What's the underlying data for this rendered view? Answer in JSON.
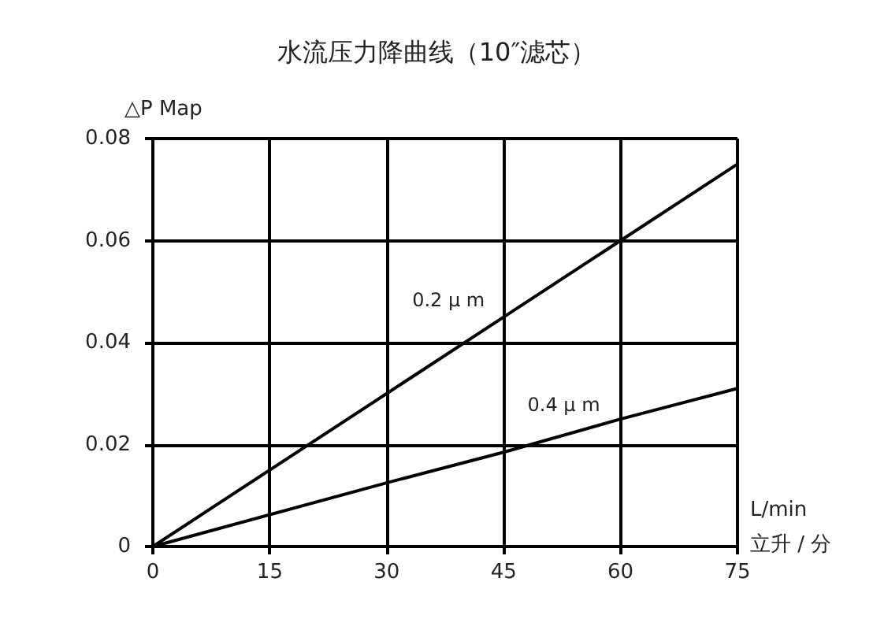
{
  "chart_data": {
    "type": "line",
    "title": "水流压力降曲线（10″滤芯）",
    "ylabel": "△P Map",
    "xlabel": "L/min\n立升 / 分",
    "x": [
      0,
      30,
      45,
      60,
      75
    ],
    "series": [
      {
        "name": "0.2 μ m",
        "color": "#000000",
        "values": [
          0,
          0.03,
          0.045,
          0.06,
          0.075
        ]
      },
      {
        "name": "0.4 μ m",
        "color": "#000000",
        "values": [
          0,
          0.0125,
          0.0185,
          0.025,
          0.031
        ]
      }
    ],
    "xlim": [
      0,
      75
    ],
    "xticks": [
      0,
      15,
      30,
      45,
      60,
      75
    ],
    "ylim": [
      0,
      0.08
    ],
    "yticks": [
      0,
      0.02,
      0.04,
      0.06,
      0.08
    ],
    "grid": true,
    "marker": "none",
    "line_style": "solid"
  }
}
